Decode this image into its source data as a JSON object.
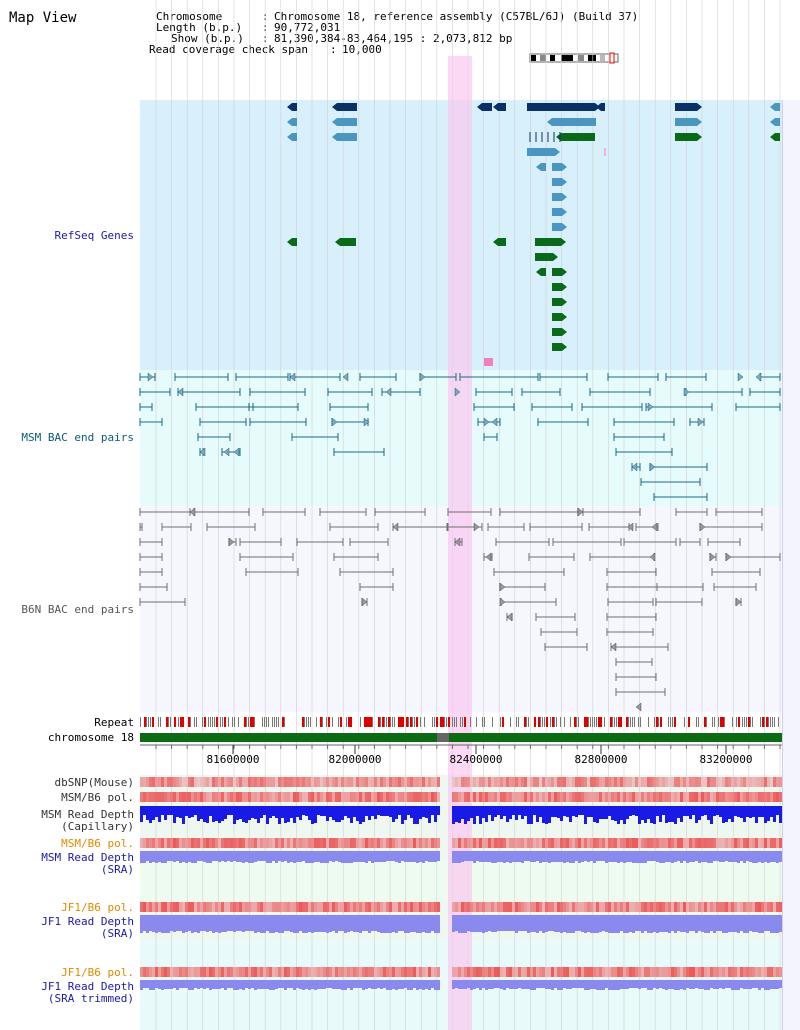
{
  "page": {
    "title": "Map View"
  },
  "header": {
    "rows": [
      {
        "key": "Chromosome",
        "value": "Chromosome 18, reference assembly (C57BL/6J) (Build 37)"
      },
      {
        "key": "Length (b.p.)",
        "value": "90,772,031"
      },
      {
        "key": "Show (b.p.)",
        "value": "81,390,384-83,464,195 : 2,073,812 bp"
      },
      {
        "key": "Read coverage check span",
        "value": "10,000"
      }
    ]
  },
  "tracks": {
    "refseq": "RefSeq Genes",
    "msm_bac": "MSM BAC end pairs",
    "b6n_bac": "B6N BAC end pairs",
    "repeat": "Repeat",
    "chromosome": "chromosome 18",
    "dbsnp": "dbSNP(Mouse)",
    "msm_pol_1": "MSM/B6 pol.",
    "msm_depth_cap": [
      "MSM Read Depth",
      "(Capillary)"
    ],
    "msm_pol_2": "MSM/B6 pol.",
    "msm_depth_sra": [
      "MSM Read Depth",
      "(SRA)"
    ],
    "jf1_pol_1": "JF1/B6 pol.",
    "jf1_depth_sra": [
      "JF1 Read Depth",
      "(SRA)"
    ],
    "jf1_pol_2": "JF1/B6 pol.",
    "jf1_depth_trim": [
      "JF1 Read Depth",
      "(SRA trimmed)"
    ]
  },
  "axis": {
    "ticks": [
      "81600000",
      "82000000",
      "82400000",
      "82800000",
      "83200000"
    ]
  },
  "colors": {
    "refseq_bg": "#d8f0fb",
    "bac_bg": "#e6fbfb",
    "gene_navy": "#0b3068",
    "gene_blue": "#4a96c0",
    "gene_green": "#0b6a1a",
    "bac_line": "#1a6a8a",
    "b6n_line": "#707070",
    "highlight": "#f7d4f1",
    "depth_cap": "#1a1ae6",
    "depth_sra": "#8a8aee",
    "pol_red": "#e04040",
    "chrom_green": "#0b6a12"
  }
}
